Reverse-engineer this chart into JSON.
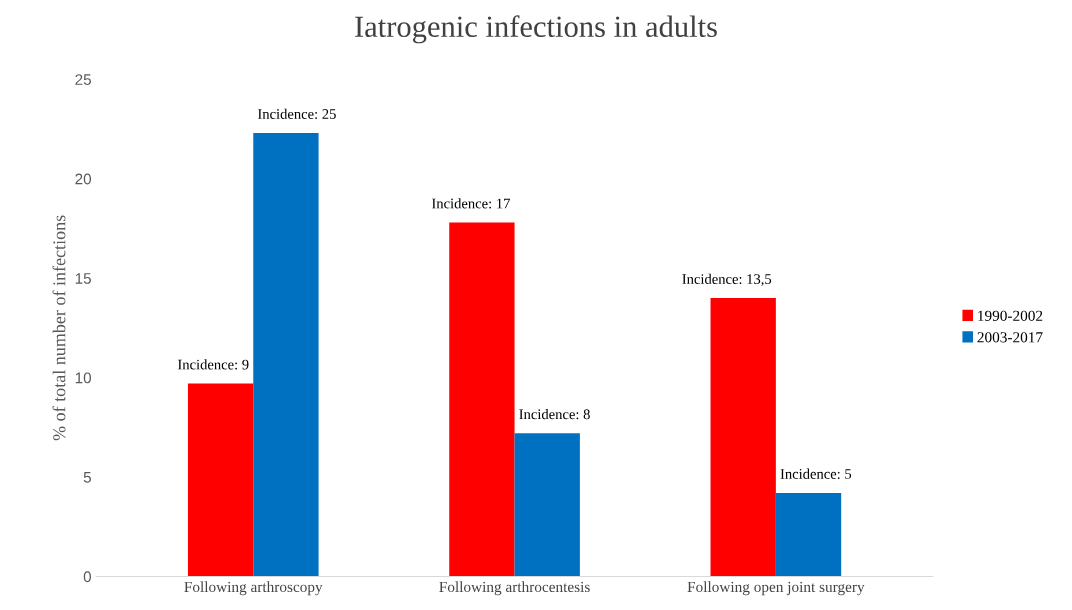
{
  "chart_data": {
    "type": "bar",
    "title": "Iatrogenic infections in adults",
    "ylabel": "% of total number of infections",
    "categories": [
      "Following arthroscopy",
      "Following arthrocentesis",
      "Following open joint surgery"
    ],
    "series": [
      {
        "name": "1990-2002",
        "color": "#ff0000",
        "values": [
          9.7,
          17.8,
          14.0
        ]
      },
      {
        "name": "2003-2017",
        "color": "#0070c0",
        "values": [
          22.3,
          7.2,
          4.2
        ]
      }
    ],
    "annotations": [
      {
        "text": "Incidence: 9",
        "x": "Following arthroscopy",
        "y": 9.7
      },
      {
        "text": "Incidence: 25",
        "x": "Following arthroscopy",
        "y": 22.3
      },
      {
        "text": "Incidence: 17",
        "x": "Following arthrocentesis",
        "y": 17.8
      },
      {
        "text": "Incidence: 8",
        "x": "Following arthrocentesis",
        "y": 7.2
      },
      {
        "text": "Incidence: 13,5",
        "x": "Following open joint surgery",
        "y": 14.0
      },
      {
        "text": "Incidence: 5",
        "x": "Following open joint surgery",
        "y": 4.2
      }
    ],
    "ylim": [
      0,
      25
    ],
    "yticks": [
      0,
      5,
      10,
      15,
      20,
      25
    ],
    "grid": false,
    "legend": "right"
  }
}
